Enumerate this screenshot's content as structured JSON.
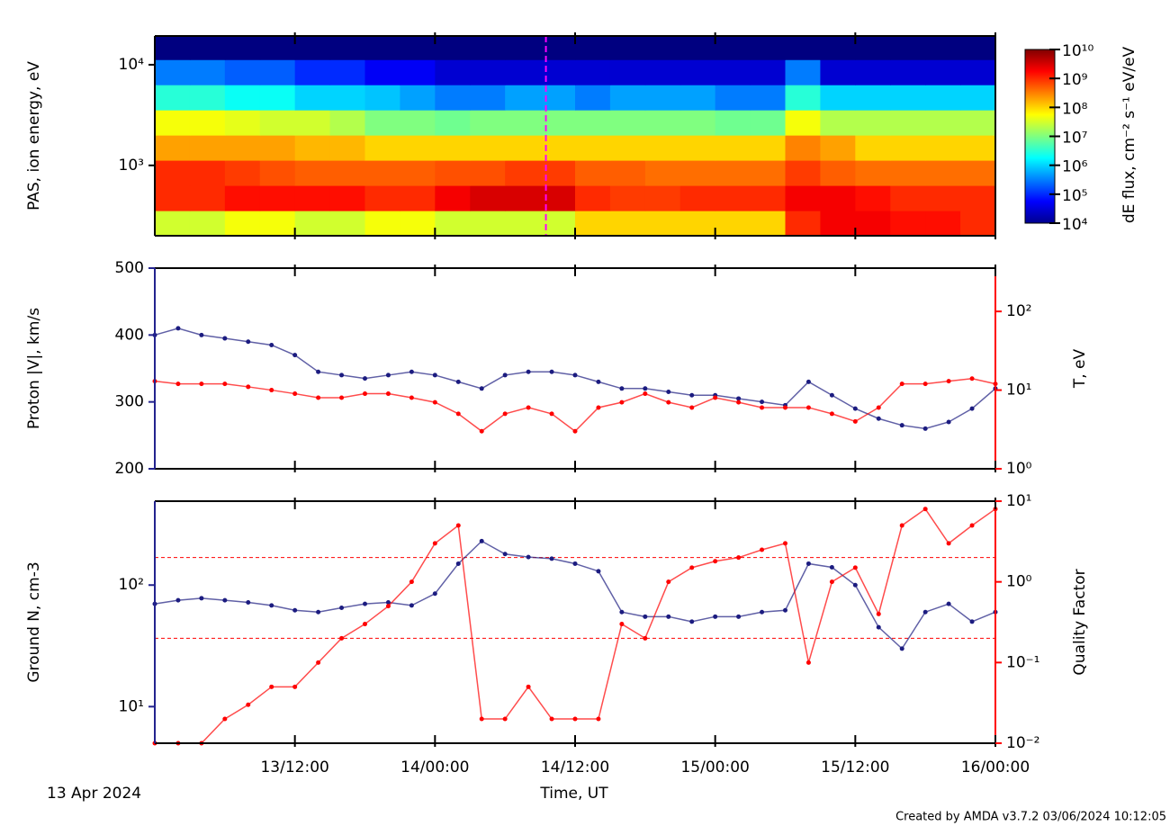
{
  "chart_data": [
    {
      "type": "spectrogram",
      "ylabel": "PAS, ion energy, eV",
      "xlim": [
        0,
        72
      ],
      "ylim": [
        200,
        19300
      ],
      "ylog": true,
      "yticks": [
        {
          "value": 1000,
          "label": "10³"
        },
        {
          "value": 10000,
          "label": "10⁴"
        }
      ],
      "time_bins": [
        0,
        3,
        6,
        9,
        12,
        15,
        18,
        21,
        24,
        27,
        30,
        33,
        36,
        39,
        42,
        45,
        48,
        51,
        54,
        57,
        60,
        63,
        66,
        69,
        72
      ],
      "energy_bins": [
        200,
        355,
        632,
        1125,
        2000,
        3557,
        6325,
        11247,
        19300
      ],
      "z": [
        [
          30000000.0,
          30000000.0,
          50000000.0,
          50000000.0,
          30000000.0,
          30000000.0,
          50000000.0,
          50000000.0,
          30000000.0,
          30000000.0,
          30000000.0,
          30000000.0,
          100000000.0,
          100000000.0,
          100000000.0,
          100000000.0,
          100000000.0,
          100000000.0,
          1000000000.0,
          2000000000.0,
          2000000000.0,
          1500000000.0,
          1500000000.0,
          1000000000.0
        ],
        [
          1000000000.0,
          1000000000.0,
          1500000000.0,
          1500000000.0,
          1500000000.0,
          1500000000.0,
          1000000000.0,
          1000000000.0,
          2000000000.0,
          3000000000.0,
          3000000000.0,
          3000000000.0,
          1000000000.0,
          800000000.0,
          800000000.0,
          1000000000.0,
          1000000000.0,
          1000000000.0,
          2000000000.0,
          2000000000.0,
          1500000000.0,
          1000000000.0,
          1000000000.0,
          1000000000.0
        ],
        [
          1000000000.0,
          1000000000.0,
          800000000.0,
          600000000.0,
          500000000.0,
          500000000.0,
          500000000.0,
          500000000.0,
          600000000.0,
          600000000.0,
          800000000.0,
          800000000.0,
          500000000.0,
          500000000.0,
          400000000.0,
          400000000.0,
          400000000.0,
          400000000.0,
          800000000.0,
          500000000.0,
          400000000.0,
          400000000.0,
          400000000.0,
          400000000.0
        ],
        [
          200000000.0,
          200000000.0,
          200000000.0,
          200000000.0,
          150000000.0,
          150000000.0,
          100000000.0,
          100000000.0,
          100000000.0,
          100000000.0,
          100000000.0,
          100000000.0,
          100000000.0,
          100000000.0,
          100000000.0,
          100000000.0,
          100000000.0,
          100000000.0,
          300000000.0,
          200000000.0,
          100000000.0,
          100000000.0,
          100000000.0,
          100000000.0
        ],
        [
          50000000.0,
          50000000.0,
          40000000.0,
          30000000.0,
          30000000.0,
          20000000.0,
          10000000.0,
          10000000.0,
          8000000.0,
          10000000.0,
          10000000.0,
          10000000.0,
          10000000.0,
          10000000.0,
          10000000.0,
          10000000.0,
          8000000.0,
          8000000.0,
          50000000.0,
          20000000.0,
          20000000.0,
          20000000.0,
          20000000.0,
          20000000.0
        ],
        [
          3000000.0,
          3000000.0,
          2000000.0,
          2000000.0,
          1000000.0,
          1000000.0,
          800000.0,
          500000.0,
          300000.0,
          300000.0,
          500000.0,
          500000.0,
          300000.0,
          500000.0,
          500000.0,
          500000.0,
          300000.0,
          300000.0,
          3000000.0,
          1000000.0,
          1000000.0,
          1000000.0,
          1000000.0,
          1000000.0
        ],
        [
          300000.0,
          300000.0,
          200000.0,
          200000.0,
          100000.0,
          100000.0,
          50000.0,
          50000.0,
          30000.0,
          30000.0,
          30000.0,
          30000.0,
          30000.0,
          30000.0,
          30000.0,
          30000.0,
          30000.0,
          30000.0,
          300000.0,
          30000.0,
          30000.0,
          30000.0,
          30000.0,
          30000.0
        ],
        [
          10000.0,
          10000.0,
          10000.0,
          10000.0,
          10000.0,
          10000.0,
          10000.0,
          10000.0,
          10000.0,
          10000.0,
          10000.0,
          10000.0,
          10000.0,
          10000.0,
          10000.0,
          10000.0,
          10000.0,
          10000.0,
          10000.0,
          10000.0,
          10000.0,
          10000.0,
          10000.0,
          10000.0
        ]
      ],
      "zlabel": "dE flux, cm⁻² s⁻¹ eV/eV",
      "zlim": [
        10000.0,
        10000000000.0
      ],
      "zlog": true,
      "zticks": [
        {
          "value": 10000.0,
          "label": "10⁴"
        },
        {
          "value": 100000.0,
          "label": "10⁵"
        },
        {
          "value": 1000000.0,
          "label": "10⁶"
        },
        {
          "value": 10000000.0,
          "label": "10⁷"
        },
        {
          "value": 100000000.0,
          "label": "10⁸"
        },
        {
          "value": 1000000000.0,
          "label": "10⁹"
        },
        {
          "value": 10000000000.0,
          "label": "10¹⁰"
        }
      ],
      "vline_x": 33.5,
      "vline_color": "#ff00ff"
    },
    {
      "type": "scatter",
      "ylabel": "Proton |V|, km/s",
      "y2label": "T, eV",
      "xlim": [
        0,
        72
      ],
      "ylim": [
        200,
        500
      ],
      "yticks": [
        200,
        300,
        400,
        500
      ],
      "ycolor": "#23238e",
      "y2lim": [
        1,
        355
      ],
      "y2log": true,
      "y2color": "#ff0000",
      "y2ticks": [
        {
          "value": 1,
          "label": "10⁰"
        },
        {
          "value": 10,
          "label": "10¹"
        },
        {
          "value": 100,
          "label": "10²"
        }
      ],
      "x": [
        0,
        2,
        4,
        6,
        8,
        10,
        12,
        14,
        16,
        18,
        20,
        22,
        24,
        26,
        28,
        30,
        32,
        34,
        36,
        38,
        40,
        42,
        44,
        46,
        48,
        50,
        52,
        54,
        56,
        58,
        60,
        62,
        64,
        66,
        68,
        70,
        72
      ],
      "series": [
        {
          "axis": "y",
          "color": "#1c1c80",
          "values": [
            400,
            410,
            400,
            395,
            390,
            385,
            370,
            345,
            340,
            335,
            340,
            345,
            340,
            330,
            320,
            340,
            345,
            345,
            340,
            330,
            320,
            320,
            315,
            310,
            310,
            305,
            300,
            295,
            330,
            310,
            290,
            275,
            265,
            260,
            270,
            290,
            320
          ]
        },
        {
          "axis": "y2",
          "color": "#ff0000",
          "values": [
            13,
            12,
            12,
            12,
            11,
            10,
            9,
            8,
            8,
            9,
            9,
            8,
            7,
            5,
            3,
            5,
            6,
            5,
            3,
            6,
            7,
            9,
            7,
            6,
            8,
            7,
            6,
            6,
            6,
            5,
            4,
            6,
            12,
            12,
            13,
            14,
            12
          ]
        }
      ]
    },
    {
      "type": "scatter",
      "ylabel": "Ground N, cm-3",
      "y2label": "Quality Factor",
      "xlabel": "Time, UT",
      "xlim": [
        0,
        72
      ],
      "ylim": [
        5,
        490
      ],
      "ylog": true,
      "ycolor": "#23238e",
      "yticks": [
        {
          "value": 10,
          "label": "10¹"
        },
        {
          "value": 100,
          "label": "10²"
        }
      ],
      "y2lim": [
        0.01,
        10
      ],
      "y2log": true,
      "y2color": "#ff0000",
      "y2ticks": [
        {
          "value": 0.01,
          "label": "10⁻²"
        },
        {
          "value": 0.1,
          "label": "10⁻¹"
        },
        {
          "value": 1,
          "label": "10⁰"
        },
        {
          "value": 10,
          "label": "10¹"
        }
      ],
      "hlines": [
        2,
        0.2
      ],
      "hline_color": "#ff0000",
      "xticks": [
        {
          "value": 12,
          "label": "13/12:00"
        },
        {
          "value": 24,
          "label": "14/00:00"
        },
        {
          "value": 36,
          "label": "14/12:00"
        },
        {
          "value": 48,
          "label": "15/00:00"
        },
        {
          "value": 60,
          "label": "15/12:00"
        },
        {
          "value": 72,
          "label": "16/00:00"
        }
      ],
      "x": [
        0,
        2,
        4,
        6,
        8,
        10,
        12,
        14,
        16,
        18,
        20,
        22,
        24,
        26,
        28,
        30,
        32,
        34,
        36,
        38,
        40,
        42,
        44,
        46,
        48,
        50,
        52,
        54,
        56,
        58,
        60,
        62,
        64,
        66,
        68,
        70,
        72
      ],
      "series": [
        {
          "axis": "y",
          "color": "#1c1c80",
          "values": [
            70,
            75,
            78,
            75,
            72,
            68,
            62,
            60,
            65,
            70,
            72,
            68,
            85,
            150,
            230,
            180,
            170,
            165,
            150,
            130,
            60,
            55,
            55,
            50,
            55,
            55,
            60,
            62,
            150,
            140,
            100,
            45,
            30,
            60,
            70,
            50,
            60
          ]
        },
        {
          "axis": "y2",
          "color": "#ff0000",
          "values": [
            0.01,
            0.01,
            0.01,
            0.02,
            0.03,
            0.05,
            0.05,
            0.1,
            0.2,
            0.3,
            0.5,
            1,
            3,
            5,
            0.02,
            0.02,
            0.05,
            0.02,
            0.02,
            0.02,
            0.3,
            0.2,
            1,
            1.5,
            1.8,
            2,
            2.5,
            3,
            0.1,
            1,
            1.5,
            0.4,
            5,
            8,
            3,
            5,
            8
          ]
        }
      ]
    }
  ],
  "date_label": "13 Apr 2024",
  "footer": "Created by AMDA v3.7.2 03/06/2024 10:12:05"
}
